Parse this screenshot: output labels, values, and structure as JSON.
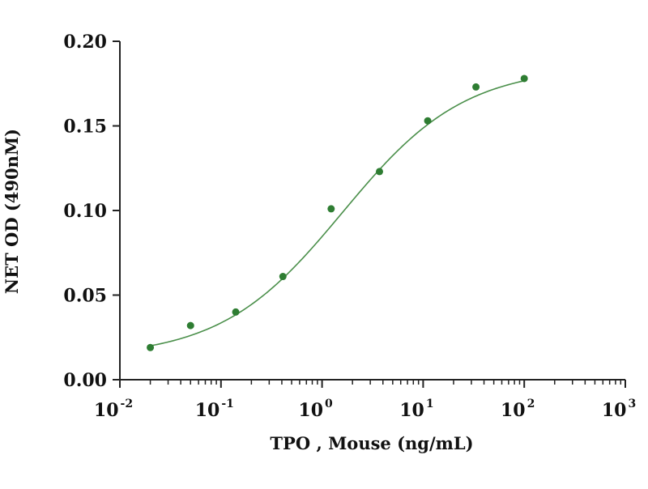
{
  "chart_data": {
    "type": "scatter",
    "title": "",
    "xlabel": "TPO , Mouse (ng/mL)",
    "ylabel": "NET OD (490nM)",
    "x_scale": "log",
    "xlim": [
      0.01,
      1000
    ],
    "ylim": [
      0.0,
      0.2
    ],
    "x_ticks": [
      {
        "base": "10",
        "exp": "-2"
      },
      {
        "base": "10",
        "exp": "-1"
      },
      {
        "base": "10",
        "exp": "0"
      },
      {
        "base": "10",
        "exp": "1"
      },
      {
        "base": "10",
        "exp": "2"
      },
      {
        "base": "10",
        "exp": "3"
      }
    ],
    "y_ticks": [
      "0.00",
      "0.05",
      "0.10",
      "0.15",
      "0.20"
    ],
    "grid": false,
    "legend": "none",
    "series": [
      {
        "x": [
          0.02,
          0.05,
          0.14,
          0.41,
          1.23,
          3.7,
          11.1,
          33.3,
          100
        ],
        "y": [
          0.019,
          0.032,
          0.04,
          0.061,
          0.101,
          0.123,
          0.153,
          0.173,
          0.178
        ],
        "color": "#2e7d32"
      }
    ],
    "fit_curve": {
      "model": "4PL",
      "bottom": 0.013,
      "top": 0.185,
      "ec50": 1.6,
      "hill": 0.72,
      "color": "#4a8f4a"
    }
  }
}
